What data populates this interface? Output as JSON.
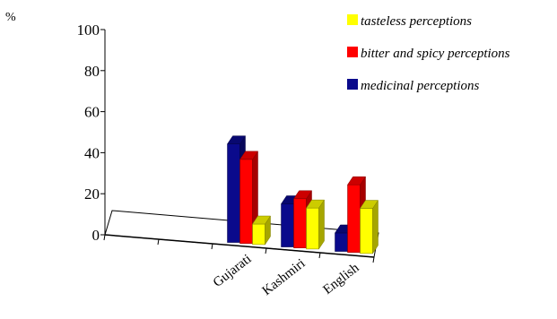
{
  "chart_data": {
    "type": "bar",
    "title": "",
    "xlabel": "",
    "ylabel": "%",
    "ylim": [
      0,
      100
    ],
    "yticks": [
      0,
      20,
      40,
      60,
      80,
      100
    ],
    "categories": [
      "Gujarati",
      "Kashmiri",
      "English"
    ],
    "series": [
      {
        "name": "medicinal perceptions",
        "values": [
          48,
          21,
          9
        ],
        "color": "#0a0a8c"
      },
      {
        "name": "bitter and spicy perceptions",
        "values": [
          41,
          24,
          33
        ],
        "color": "#ff0000"
      },
      {
        "name": "tasteless perceptions",
        "values": [
          10,
          20,
          22
        ],
        "color": "#ffff00"
      }
    ],
    "legend_order": [
      2,
      1,
      0
    ],
    "legend_position": "top-right",
    "grid": false,
    "three_d": true
  }
}
